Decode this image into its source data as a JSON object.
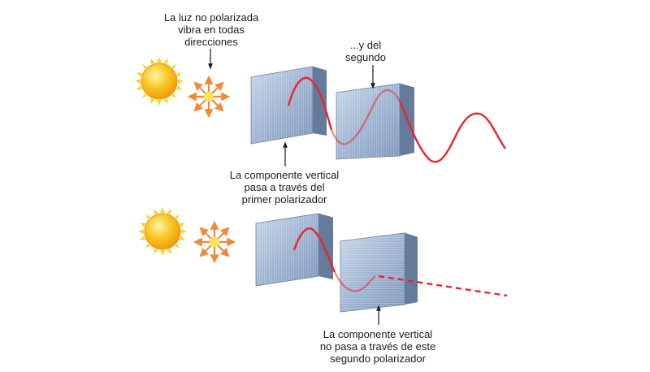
{
  "diagram": {
    "labels": {
      "unpolarized": [
        "La luz no polarizada",
        "vibra en todas",
        "direcciones"
      ],
      "second": [
        "...y del",
        "segundo"
      ],
      "vertical_passes": [
        "La componente vertical",
        "pasa a través del",
        "primer polarizador"
      ],
      "vertical_blocked": [
        "La componente vertical",
        "no pasa a través de este",
        "segundo polarizador"
      ]
    },
    "colors": {
      "wave": "#e8242b",
      "sun_core": "#f6b40f",
      "sun_rays": "#f3d23a",
      "arrows": "#f08a3a",
      "polarizer_face": "#9fb6d3",
      "polarizer_edge": "#5e7392",
      "text": "#1a1a1a"
    },
    "icons": [
      "sun-icon",
      "unpolarized-light-icon",
      "polarizer-filter",
      "light-wave"
    ]
  }
}
